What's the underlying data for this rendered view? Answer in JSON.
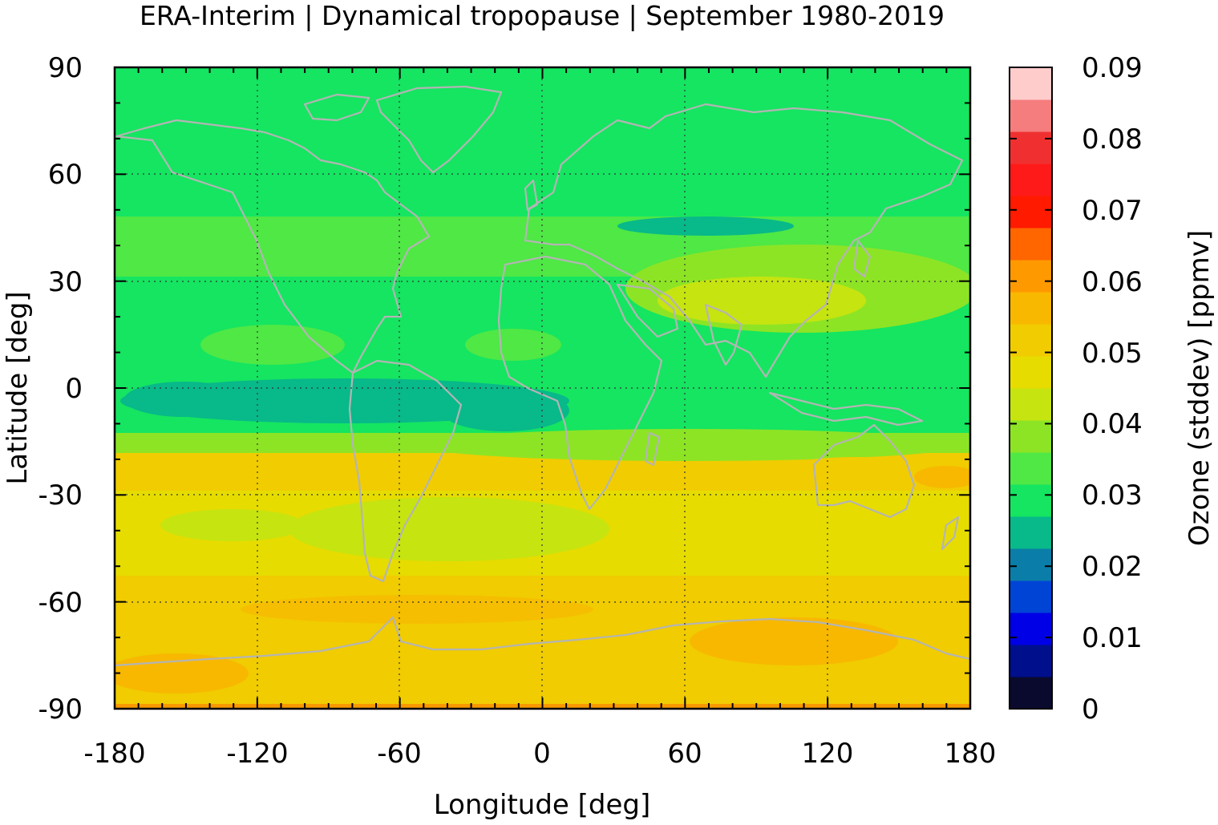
{
  "chart_data": {
    "type": "heatmap",
    "title": "ERA-Interim | Dynamical tropopause | September 1980-2019",
    "xlabel": "Longitude [deg]",
    "ylabel": "Latitude [deg]",
    "colorbar_label": "Ozone (stddev) [ppmv]",
    "xlim": [
      -180,
      180
    ],
    "ylim": [
      -90,
      90
    ],
    "x_ticks": [
      "-180",
      "-120",
      "-60",
      "0",
      "60",
      "120",
      "180"
    ],
    "y_ticks": [
      "90",
      "60",
      "30",
      "0",
      "-30",
      "-60",
      "-90"
    ],
    "colorbar_ticks": [
      "0",
      "0.01",
      "0.02",
      "0.03",
      "0.04",
      "0.05",
      "0.06",
      "0.07",
      "0.08",
      "0.09"
    ],
    "colorbar_range": [
      0,
      0.09
    ],
    "grid": true,
    "coastlines": true,
    "colorbar_colors": [
      "#0a0a2e",
      "#000f8c",
      "#0000e6",
      "#0044d6",
      "#0a7ea8",
      "#08b98a",
      "#15e561",
      "#4fe845",
      "#8de425",
      "#c6e410",
      "#e6dc00",
      "#f0cc00",
      "#f8b800",
      "#ff9900",
      "#ff6600",
      "#ff1a00",
      "#ff1a1a",
      "#f03030",
      "#f57d7d",
      "#ffcccc"
    ],
    "zonal_profile": [
      {
        "lat": 90,
        "value": 0.031
      },
      {
        "lat": 75,
        "value": 0.031
      },
      {
        "lat": 60,
        "value": 0.033
      },
      {
        "lat": 45,
        "value": 0.034
      },
      {
        "lat": 30,
        "value": 0.038
      },
      {
        "lat": 15,
        "value": 0.033
      },
      {
        "lat": 0,
        "value": 0.026
      },
      {
        "lat": -15,
        "value": 0.041
      },
      {
        "lat": -30,
        "value": 0.047
      },
      {
        "lat": -45,
        "value": 0.045
      },
      {
        "lat": -60,
        "value": 0.049
      },
      {
        "lat": -75,
        "value": 0.051
      },
      {
        "lat": -90,
        "value": 0.052
      }
    ]
  }
}
